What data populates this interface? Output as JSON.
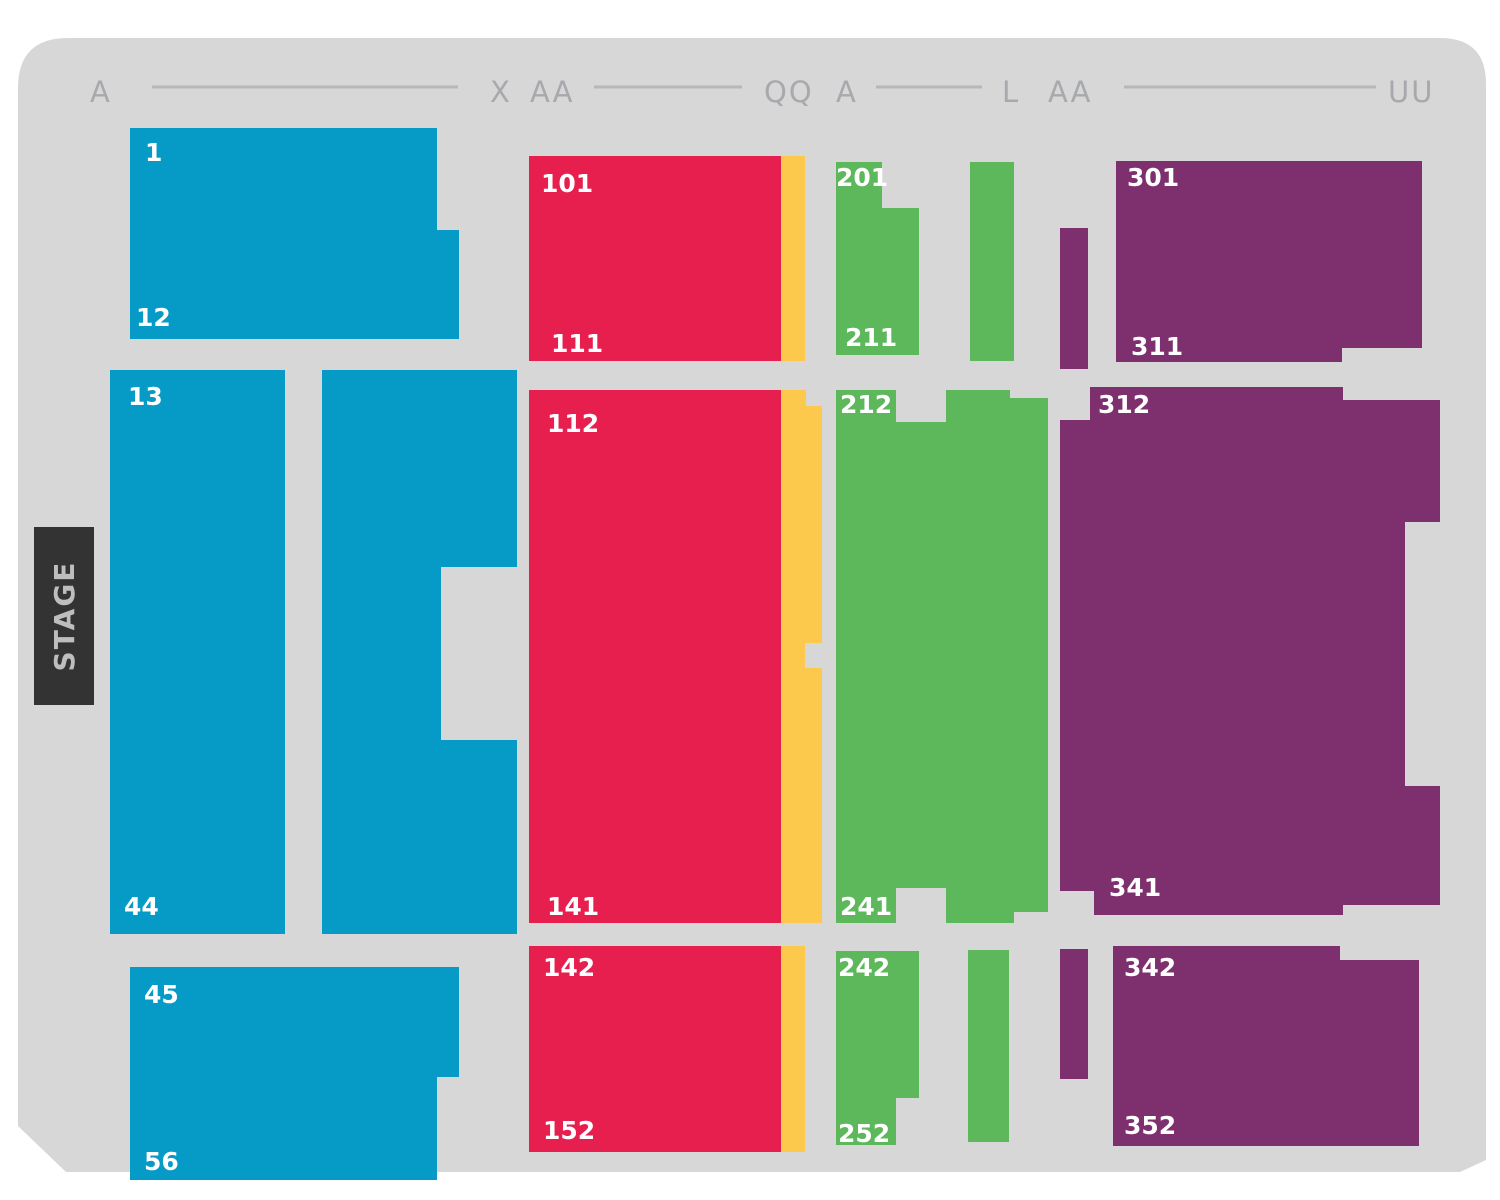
{
  "colors": {
    "floor": "#d7d7d8",
    "block_blue": "#069ac7",
    "block_red": "#e61f4e",
    "aisle_yellow": "#fdc94c",
    "block_green": "#5cb85a",
    "block_purple": "#7d306d",
    "stage": "#333333",
    "row_label": "#a7a9ac"
  },
  "stage": {
    "label": "STAGE"
  },
  "row_labels": {
    "blue_start": "A",
    "blue_end": "X",
    "red_start": "AA",
    "red_end": "QQ",
    "green_start": "A",
    "green_end": "L",
    "purple_start": "AA",
    "purple_end": "UU"
  },
  "seat_numbers": {
    "blue": {
      "n1": "1",
      "n12": "12",
      "n13": "13",
      "n44": "44",
      "n45": "45",
      "n56": "56"
    },
    "red": {
      "n101": "101",
      "n111": "111",
      "n112": "112",
      "n141": "141",
      "n142": "142",
      "n152": "152"
    },
    "green": {
      "n201": "201",
      "n211": "211",
      "n212": "212",
      "n241": "241",
      "n242": "242",
      "n252": "252"
    },
    "purple": {
      "n301": "301",
      "n311": "311",
      "n312": "312",
      "n341": "341",
      "n342": "342",
      "n352": "352"
    }
  }
}
